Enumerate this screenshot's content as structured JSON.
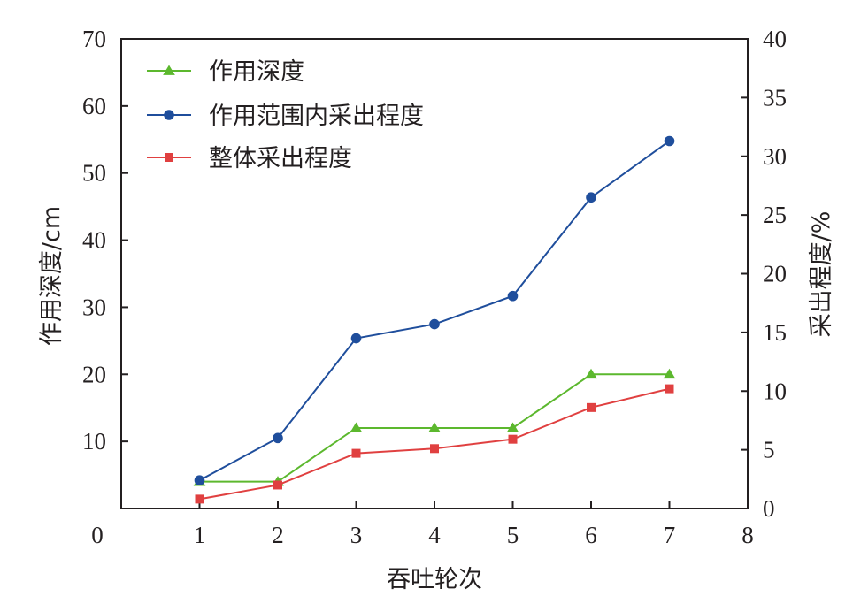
{
  "chart_data": {
    "type": "line",
    "x": [
      1,
      2,
      3,
      4,
      5,
      6,
      7
    ],
    "xlabel": "吞吐轮次",
    "xlim": [
      0,
      8
    ],
    "xticks": [
      "0",
      "1",
      "2",
      "3",
      "4",
      "5",
      "6",
      "7",
      "8"
    ],
    "ylabel_left": "作用深度/cm",
    "ylim_left": [
      0,
      70
    ],
    "yticks_left": [
      "10",
      "20",
      "30",
      "40",
      "50",
      "60",
      "70"
    ],
    "ylabel_right": "采出程度/%",
    "ylim_right": [
      0,
      40
    ],
    "yticks_right": [
      "0",
      "5",
      "10",
      "15",
      "20",
      "25",
      "30",
      "35",
      "40"
    ],
    "grid": false,
    "legend_position": "top-left",
    "series": [
      {
        "name": "作用深度",
        "axis": "left",
        "marker": "triangle",
        "color": "#5cb82e",
        "values": [
          4,
          4,
          12,
          12,
          12,
          20,
          20
        ]
      },
      {
        "name": "作用范围内采出程度",
        "axis": "right",
        "marker": "circle",
        "color": "#1f4e9c",
        "values": [
          2.4,
          6.0,
          14.5,
          15.7,
          18.1,
          26.5,
          31.3
        ]
      },
      {
        "name": "整体采出程度",
        "axis": "right",
        "marker": "square",
        "color": "#e04040",
        "values": [
          0.8,
          2.0,
          4.7,
          5.1,
          5.9,
          8.6,
          10.2
        ]
      }
    ]
  }
}
